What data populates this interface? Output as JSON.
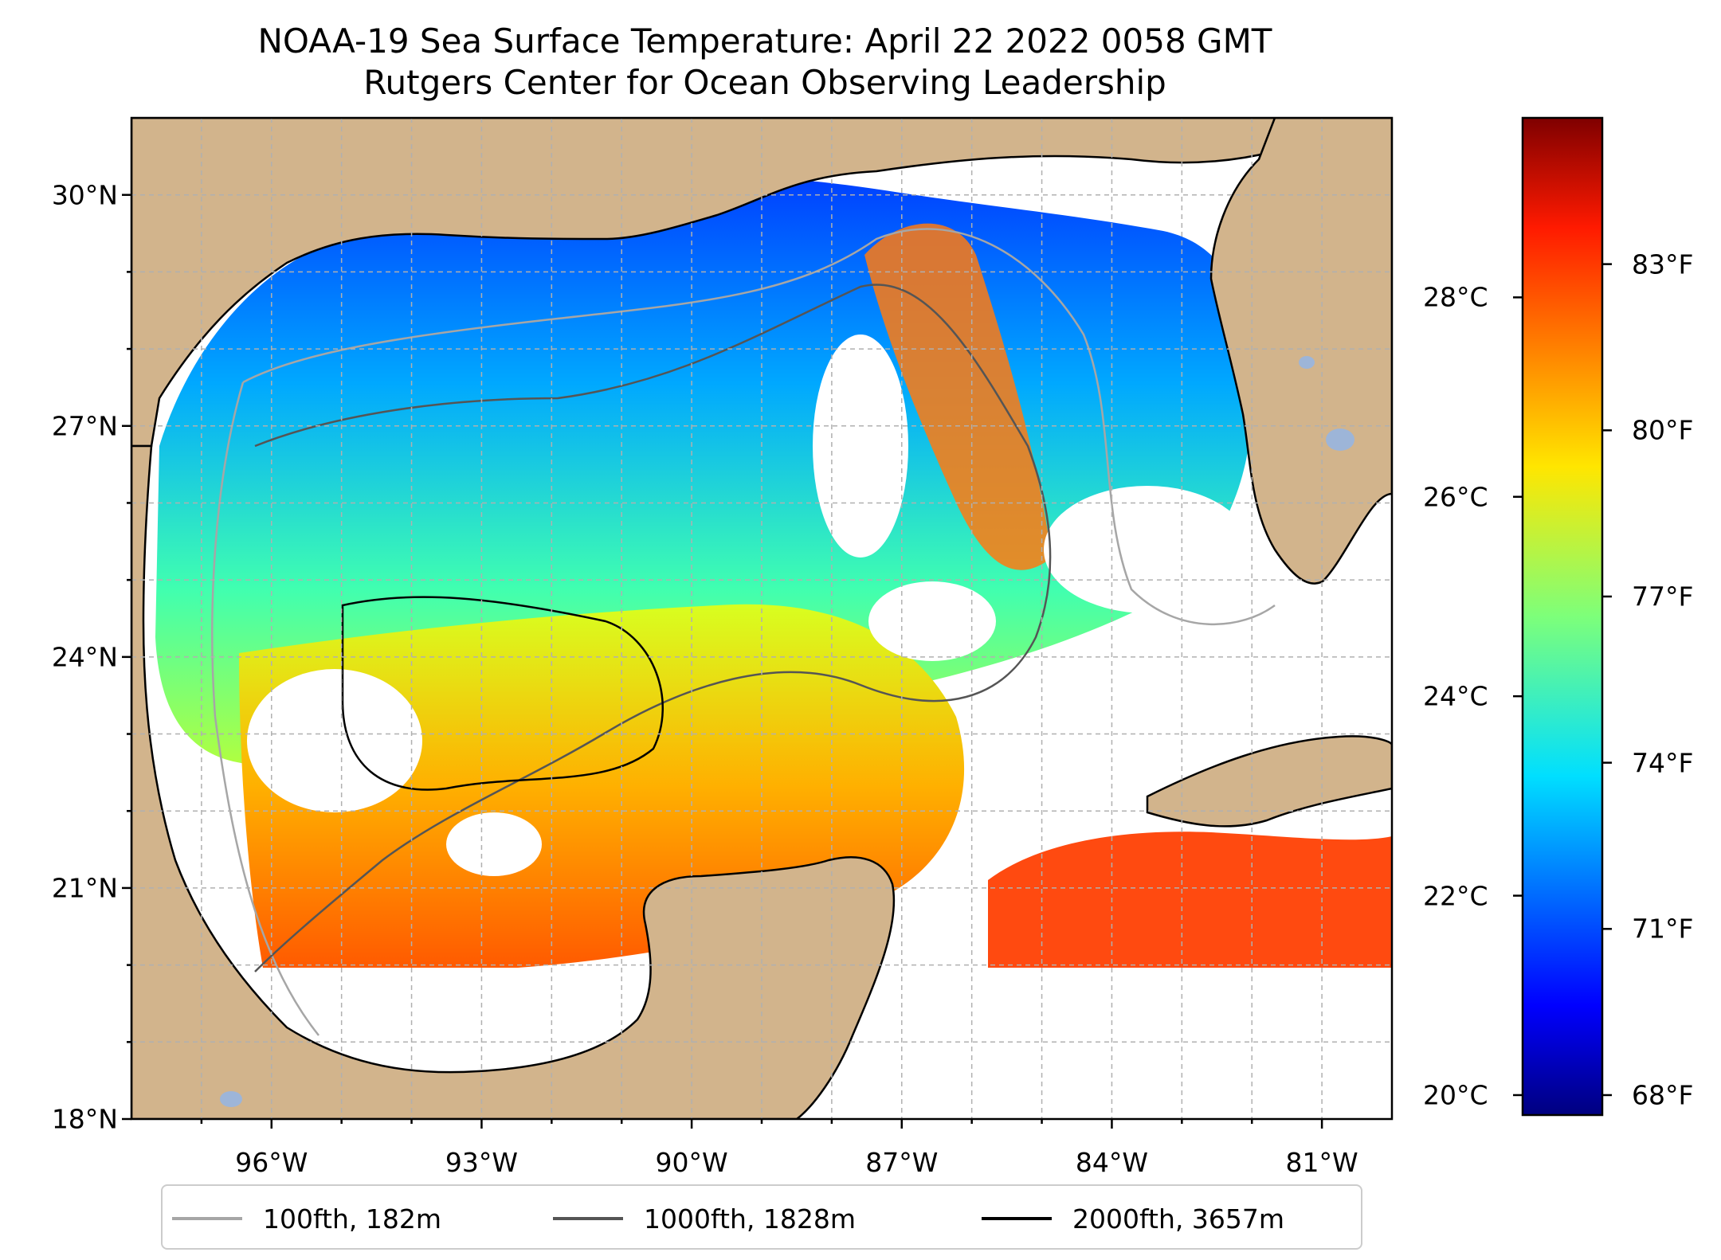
{
  "title": {
    "line1": "NOAA-19 Sea Surface Temperature: April 22 2022 0058 GMT",
    "line2": "Rutgers Center for Ocean Observing Leadership"
  },
  "colors": {
    "land": "#d2b48c",
    "water_nodata": "#ffffff",
    "lakes": "#9db5d8",
    "coastline": "#000000",
    "grid": "#b0b0b0"
  },
  "map_extent": {
    "lon": [
      -98,
      -80
    ],
    "lat": [
      18,
      31
    ]
  },
  "lat_ticks": [
    {
      "value": 30,
      "label": "30°N"
    },
    {
      "value": 27,
      "label": "27°N"
    },
    {
      "value": 24,
      "label": "24°N"
    },
    {
      "value": 21,
      "label": "21°N"
    },
    {
      "value": 18,
      "label": "18°N"
    }
  ],
  "lon_ticks": [
    {
      "value": -96,
      "label": "96°W"
    },
    {
      "value": -93,
      "label": "93°W"
    },
    {
      "value": -90,
      "label": "90°W"
    },
    {
      "value": -87,
      "label": "87°W"
    },
    {
      "value": -84,
      "label": "84°W"
    },
    {
      "value": -81,
      "label": "81°W"
    }
  ],
  "colorbar": {
    "colormap": "jet",
    "range_c": [
      19.8,
      29.8
    ],
    "celsius_ticks": [
      {
        "value": 28,
        "label": "28°C"
      },
      {
        "value": 26,
        "label": "26°C"
      },
      {
        "value": 24,
        "label": "24°C"
      },
      {
        "value": 22,
        "label": "22°C"
      },
      {
        "value": 20,
        "label": "20°C"
      }
    ],
    "fahrenheit_ticks": [
      {
        "value": 83,
        "label": "83°F"
      },
      {
        "value": 80,
        "label": "80°F"
      },
      {
        "value": 77,
        "label": "77°F"
      },
      {
        "value": 74,
        "label": "74°F"
      },
      {
        "value": 71,
        "label": "71°F"
      },
      {
        "value": 68,
        "label": "68°F"
      }
    ]
  },
  "legend": [
    {
      "label": "100fth, 182m",
      "color": "#a6a6a6"
    },
    {
      "label": "1000fth, 1828m",
      "color": "#555555"
    },
    {
      "label": "2000fth, 3657m",
      "color": "#000000"
    }
  ]
}
